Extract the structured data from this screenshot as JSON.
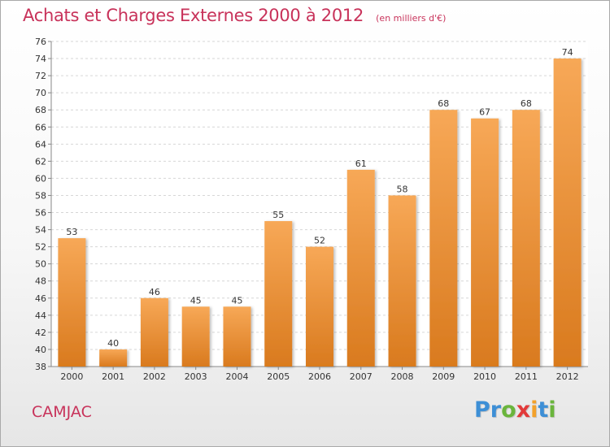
{
  "header": {
    "title": "Achats et Charges Externes 2000 à 2012",
    "unit": "(en milliers d'€)"
  },
  "footer": {
    "place": "CAMJAC",
    "logo_letters": [
      "P",
      "r",
      "o",
      "x",
      "i",
      "t",
      "i"
    ],
    "logo_colors": [
      "#3d8fd6",
      "#3d8fd6",
      "#6ab53c",
      "#e23a3a",
      "#f3a12a",
      "#3d8fd6",
      "#6ab53c"
    ]
  },
  "colors": {
    "bar_top": "#f7a857",
    "bar_bottom": "#d97a1e",
    "title": "#c8325a"
  },
  "chart_data": {
    "type": "bar",
    "categories": [
      "2000",
      "2001",
      "2002",
      "2003",
      "2004",
      "2005",
      "2006",
      "2007",
      "2008",
      "2009",
      "2010",
      "2011",
      "2012"
    ],
    "values": [
      53,
      40,
      46,
      45,
      45,
      55,
      52,
      61,
      58,
      68,
      67,
      68,
      74
    ],
    "data_labels": [
      "53",
      "40",
      "46",
      "45",
      "45",
      "55",
      "52",
      "61",
      "58",
      "68",
      "67",
      "68",
      "74"
    ],
    "yticks": [
      "38",
      "40",
      "42",
      "44",
      "46",
      "48",
      "50",
      "52",
      "54",
      "56",
      "58",
      "60",
      "62",
      "64",
      "66",
      "68",
      "70",
      "72",
      "74",
      "76"
    ],
    "ylim": [
      38,
      76
    ],
    "grid": true,
    "legend": "none"
  }
}
